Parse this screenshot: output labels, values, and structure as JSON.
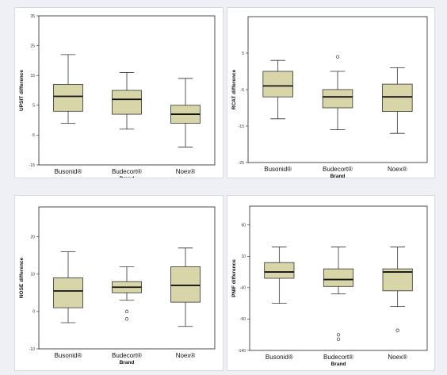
{
  "chart_data": [
    {
      "type": "boxplot",
      "ylabel": "UPSIT difference",
      "xlabel": "Brand",
      "ylim": [
        -15,
        35
      ],
      "yticks": [
        "-15",
        "-5",
        "5",
        "15",
        "25",
        "35"
      ],
      "categories": [
        "Busonid®",
        "Budecort®",
        "Noex®"
      ],
      "colors": {
        "box": "#d8d6a8",
        "stroke": "#333333"
      },
      "boxes": [
        {
          "min": -1,
          "q1": 3,
          "median": 8,
          "q3": 12,
          "max": 22,
          "outliers": []
        },
        {
          "min": -3,
          "q1": 2,
          "median": 7,
          "q3": 10,
          "max": 16,
          "outliers": []
        },
        {
          "min": -9,
          "q1": -1,
          "median": 2,
          "q3": 5,
          "max": 14,
          "outliers": []
        }
      ]
    },
    {
      "type": "boxplot",
      "ylabel": "RCAT difference",
      "xlabel": "Brand",
      "ylim": [
        -25,
        15
      ],
      "yticks": [
        "-25",
        "-15",
        "-5",
        "5"
      ],
      "categories": [
        "Busonid®",
        "Budecort®",
        "Noex®"
      ],
      "colors": {
        "box": "#d8d6a8",
        "stroke": "#333333"
      },
      "boxes": [
        {
          "min": -13,
          "q1": -7,
          "median": -4,
          "q3": 0,
          "max": 3,
          "outliers": []
        },
        {
          "min": -16,
          "q1": -10,
          "median": -7,
          "q3": -5,
          "max": 0,
          "outliers": [
            4
          ]
        },
        {
          "min": -17,
          "q1": -11,
          "median": -7,
          "q3": -3.5,
          "max": 1,
          "outliers": []
        }
      ]
    },
    {
      "type": "boxplot",
      "ylabel": "NOSE difference",
      "xlabel": "Brand",
      "ylim": [
        -10,
        28
      ],
      "yticks": [
        "-10",
        "0",
        "10",
        "20"
      ],
      "categories": [
        "Busonid®",
        "Budecort®",
        "Noex®"
      ],
      "colors": {
        "box": "#d8d6a8",
        "stroke": "#333333"
      },
      "boxes": [
        {
          "min": -3,
          "q1": 1,
          "median": 5.5,
          "q3": 9,
          "max": 16,
          "outliers": []
        },
        {
          "min": 3,
          "q1": 5,
          "median": 6.5,
          "q3": 8,
          "max": 12,
          "outliers": [
            0,
            -2
          ]
        },
        {
          "min": -4,
          "q1": 2.5,
          "median": 7,
          "q3": 12,
          "max": 17,
          "outliers": []
        }
      ]
    },
    {
      "type": "boxplot",
      "ylabel": "PNIF difference",
      "xlabel": "Brand",
      "ylim": [
        -140,
        90
      ],
      "yticks": [
        "-140",
        "-90",
        "-40",
        "10",
        "60"
      ],
      "categories": [
        "Busonid®",
        "Budecort®",
        "Noex®"
      ],
      "colors": {
        "box": "#d8d6a8",
        "stroke": "#333333"
      },
      "boxes": [
        {
          "min": -65,
          "q1": -25,
          "median": -15,
          "q3": 0,
          "max": 25,
          "outliers": []
        },
        {
          "min": -50,
          "q1": -38,
          "median": -27,
          "q3": -10,
          "max": 25,
          "outliers": [
            -115,
            -122
          ]
        },
        {
          "min": -70,
          "q1": -45,
          "median": -15,
          "q3": -10,
          "max": 25,
          "outliers": [
            -108
          ]
        }
      ]
    }
  ]
}
